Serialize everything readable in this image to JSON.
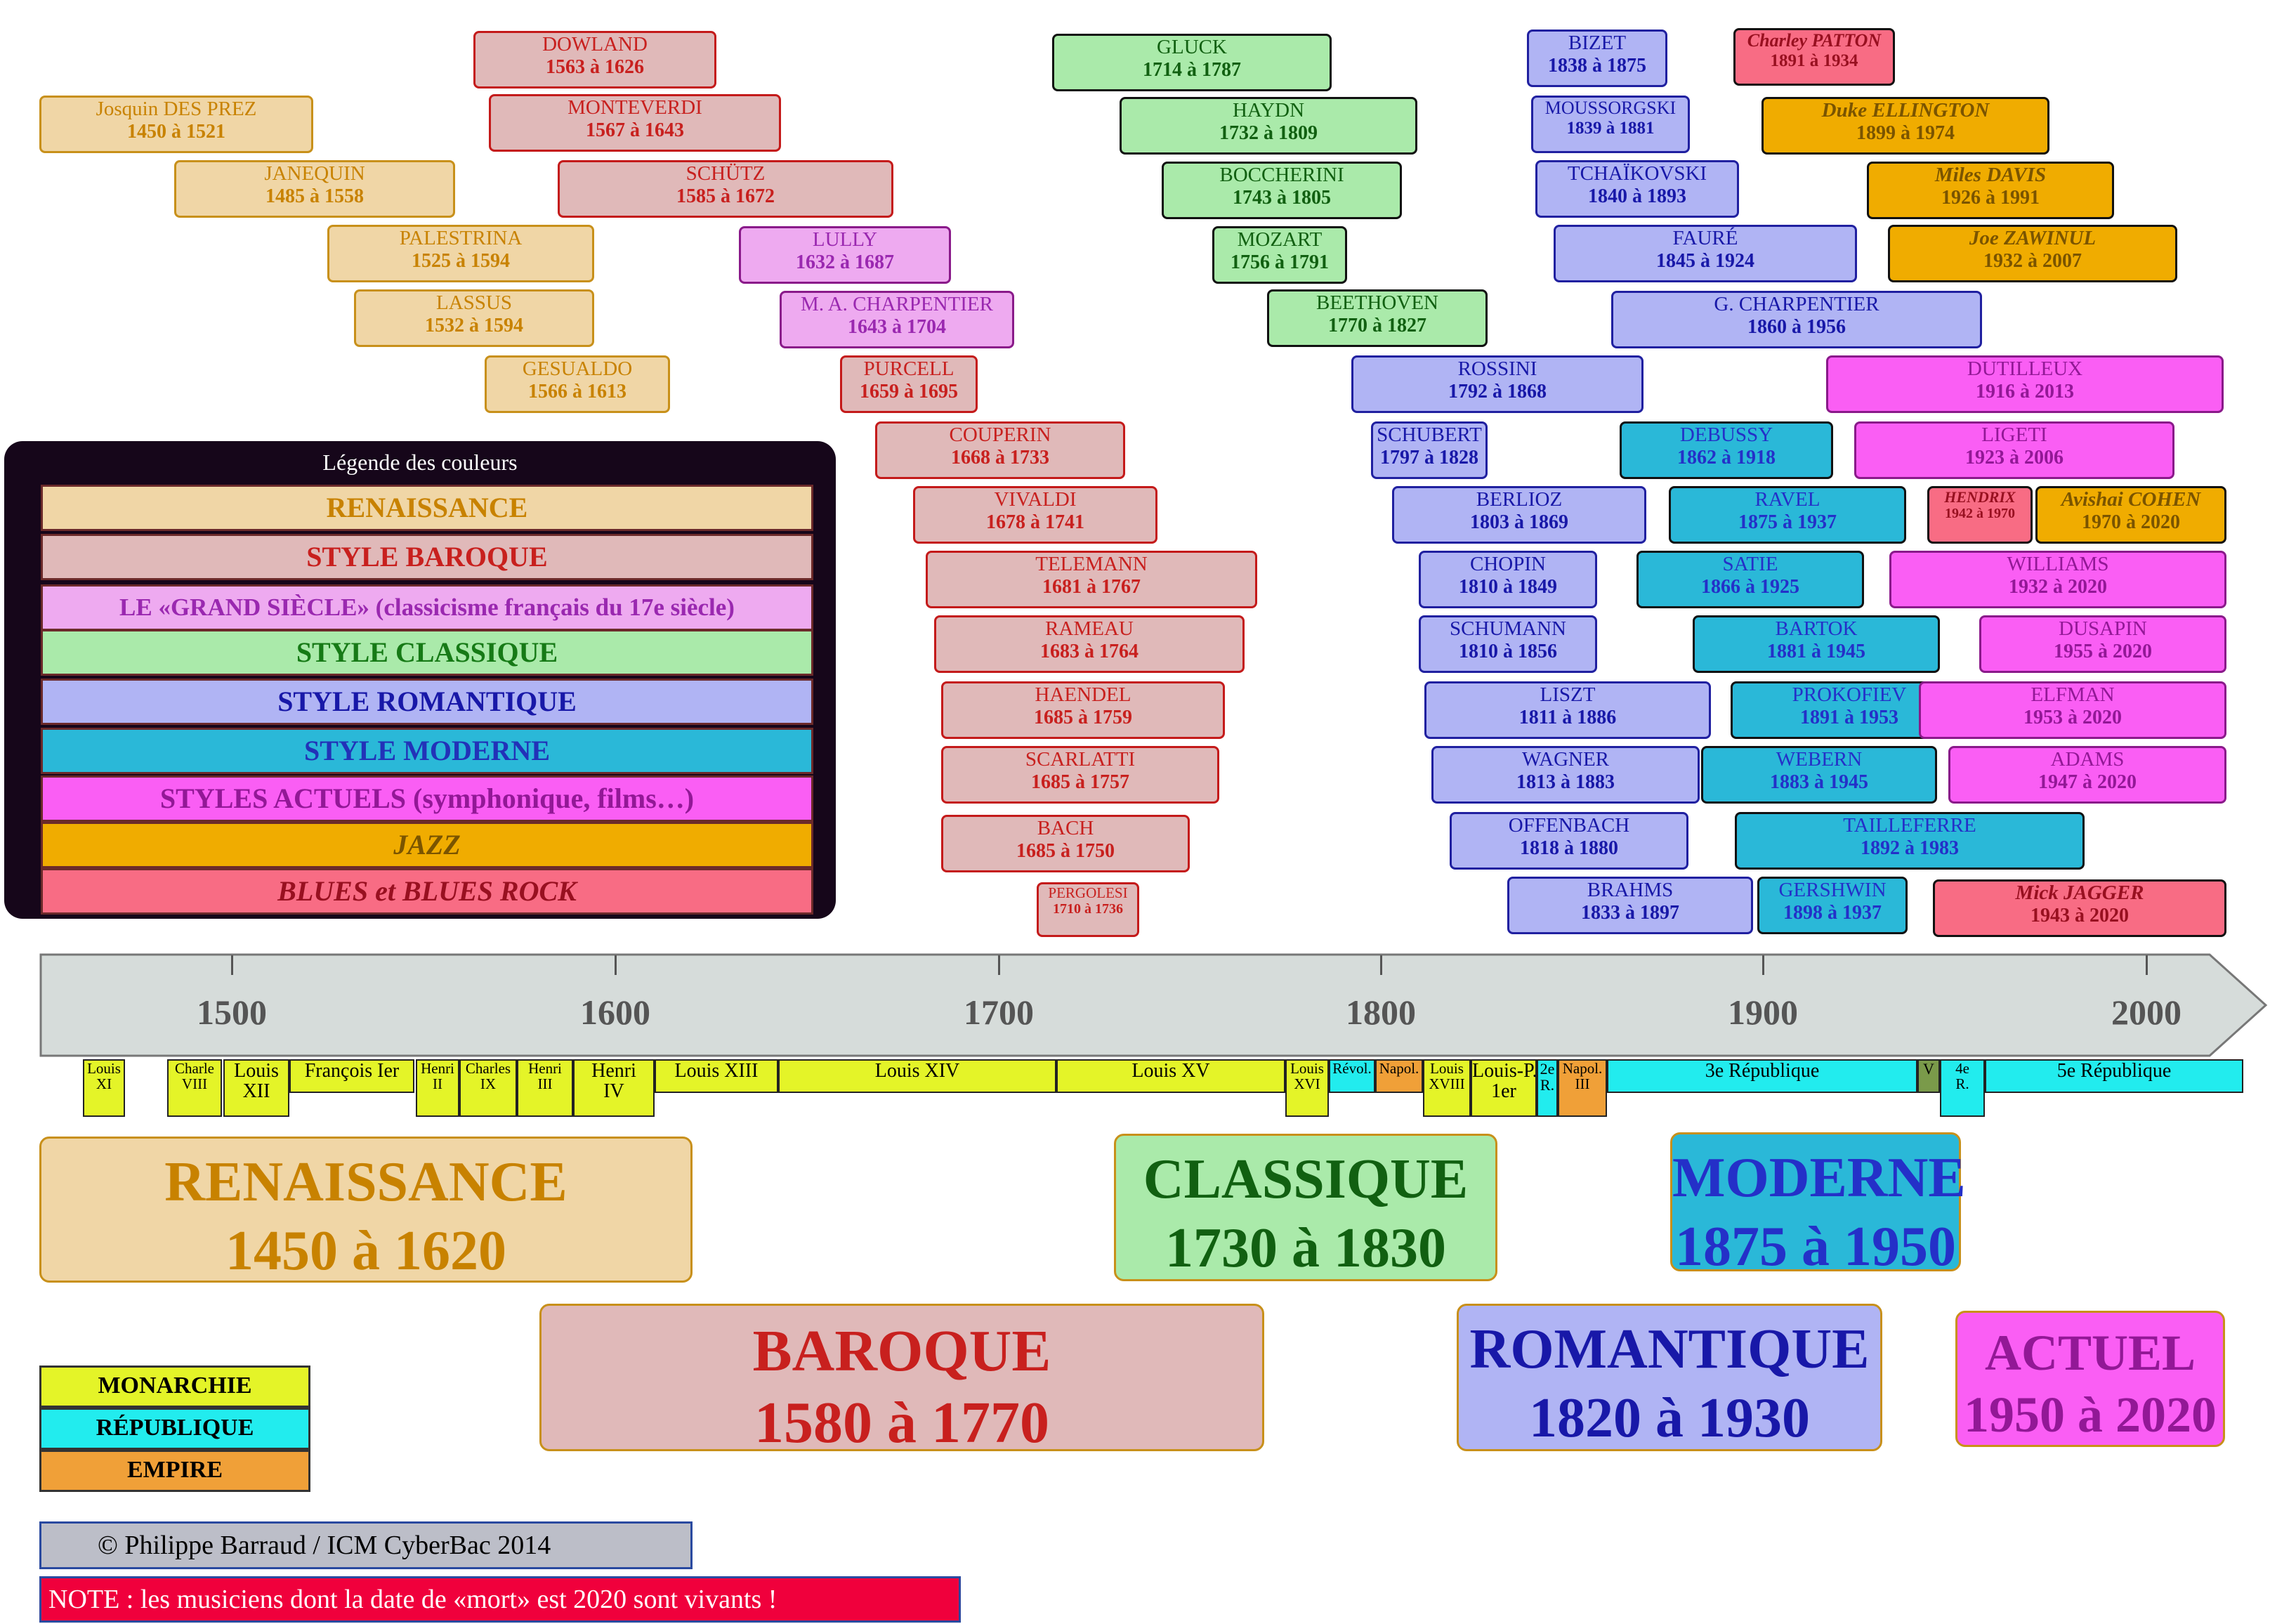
{
  "legend": {
    "title": "Légende des couleurs",
    "items": [
      {
        "label": "RENAISSANCE",
        "bg": "#f0d6a6",
        "fg": "#c88200",
        "italic": false
      },
      {
        "label": "STYLE BAROQUE",
        "bg": "#e0b9b9",
        "fg": "#c8201e",
        "italic": false
      },
      {
        "label": "LE «GRAND SIÈCLE» (classicisme français du 17e siècle)",
        "bg": "#eeaaf0",
        "fg": "#9a28b0",
        "italic": false
      },
      {
        "label": "STYLE CLASSIQUE",
        "bg": "#aaeaaa",
        "fg": "#167a16",
        "italic": false
      },
      {
        "label": "STYLE ROMANTIQUE",
        "bg": "#b0b4f4",
        "fg": "#1818a8",
        "italic": false
      },
      {
        "label": "STYLE MODERNE",
        "bg": "#2ab8d8",
        "fg": "#2232b8",
        "italic": false
      },
      {
        "label": "STYLES ACTUELS (symphonique, films…)",
        "bg": "#fa5ef4",
        "fg": "#921896",
        "italic": false
      },
      {
        "label": "JAZZ",
        "bg": "#f0ac00",
        "fg": "#7a5400",
        "italic": true
      },
      {
        "label": "BLUES et BLUES ROCK",
        "bg": "#f86c84",
        "fg": "#981020",
        "italic": true
      }
    ]
  },
  "composers": [
    {
      "name": "Josquin DES PREZ",
      "dates": "1450 à 1521",
      "style": "renaissance"
    },
    {
      "name": "JANEQUIN",
      "dates": "1485 à 1558",
      "style": "renaissance"
    },
    {
      "name": "PALESTRINA",
      "dates": "1525 à 1594",
      "style": "renaissance"
    },
    {
      "name": "LASSUS",
      "dates": "1532 à 1594",
      "style": "renaissance"
    },
    {
      "name": "GESUALDO",
      "dates": "1566 à 1613",
      "style": "renaissance"
    },
    {
      "name": "DOWLAND",
      "dates": "1563 à 1626",
      "style": "baroque"
    },
    {
      "name": "MONTEVERDI",
      "dates": "1567 à 1643",
      "style": "baroque"
    },
    {
      "name": "SCHÜTZ",
      "dates": "1585 à 1672",
      "style": "baroque"
    },
    {
      "name": "LULLY",
      "dates": "1632 à 1687",
      "style": "grandsiecle"
    },
    {
      "name": "M. A. CHARPENTIER",
      "dates": "1643 à 1704",
      "style": "grandsiecle"
    },
    {
      "name": "PURCELL",
      "dates": "1659 à 1695",
      "style": "baroque"
    },
    {
      "name": "COUPERIN",
      "dates": "1668 à 1733",
      "style": "baroque"
    },
    {
      "name": "VIVALDI",
      "dates": "1678 à 1741",
      "style": "baroque"
    },
    {
      "name": "TELEMANN",
      "dates": "1681 à 1767",
      "style": "baroque"
    },
    {
      "name": "RAMEAU",
      "dates": "1683 à 1764",
      "style": "baroque"
    },
    {
      "name": "HAENDEL",
      "dates": "1685 à 1759",
      "style": "baroque"
    },
    {
      "name": "SCARLATTI",
      "dates": "1685 à 1757",
      "style": "baroque"
    },
    {
      "name": "BACH",
      "dates": "1685 à 1750",
      "style": "baroque"
    },
    {
      "name": "PERGOLESI",
      "dates": "1710 à 1736",
      "style": "baroque"
    },
    {
      "name": "GLUCK",
      "dates": "1714 à 1787",
      "style": "classique"
    },
    {
      "name": "HAYDN",
      "dates": "1732 à 1809",
      "style": "classique"
    },
    {
      "name": "BOCCHERINI",
      "dates": "1743 à 1805",
      "style": "classique"
    },
    {
      "name": "MOZART",
      "dates": "1756 à 1791",
      "style": "classique"
    },
    {
      "name": "BEETHOVEN",
      "dates": "1770 à 1827",
      "style": "classique"
    },
    {
      "name": "ROSSINI",
      "dates": "1792 à 1868",
      "style": "romantique"
    },
    {
      "name": "SCHUBERT",
      "dates": "1797 à 1828",
      "style": "romantique"
    },
    {
      "name": "BERLIOZ",
      "dates": "1803 à 1869",
      "style": "romantique"
    },
    {
      "name": "CHOPIN",
      "dates": "1810 à 1849",
      "style": "romantique"
    },
    {
      "name": "SCHUMANN",
      "dates": "1810 à 1856",
      "style": "romantique"
    },
    {
      "name": "LISZT",
      "dates": "1811 à 1886",
      "style": "romantique"
    },
    {
      "name": "WAGNER",
      "dates": "1813 à 1883",
      "style": "romantique"
    },
    {
      "name": "OFFENBACH",
      "dates": "1818 à 1880",
      "style": "romantique"
    },
    {
      "name": "BRAHMS",
      "dates": "1833 à 1897",
      "style": "romantique"
    },
    {
      "name": "BIZET",
      "dates": "1838 à 1875",
      "style": "romantique"
    },
    {
      "name": "MOUSSORGSKI",
      "dates": "1839 à 1881",
      "style": "romantique"
    },
    {
      "name": "TCHAÏKOVSKI",
      "dates": "1840 à 1893",
      "style": "romantique"
    },
    {
      "name": "FAURÉ",
      "dates": "1845 à 1924",
      "style": "romantique"
    },
    {
      "name": "G. CHARPENTIER",
      "dates": "1860 à 1956",
      "style": "romantique"
    },
    {
      "name": "DEBUSSY",
      "dates": "1862 à 1918",
      "style": "moderne"
    },
    {
      "name": "RAVEL",
      "dates": "1875 à 1937",
      "style": "moderne"
    },
    {
      "name": "SATIE",
      "dates": "1866 à 1925",
      "style": "moderne"
    },
    {
      "name": "BARTOK",
      "dates": "1881 à 1945",
      "style": "moderne"
    },
    {
      "name": "PROKOFIEV",
      "dates": "1891 à 1953",
      "style": "moderne"
    },
    {
      "name": "WEBERN",
      "dates": "1883 à 1945",
      "style": "moderne"
    },
    {
      "name": "TAILLEFERRE",
      "dates": "1892 à 1983",
      "style": "moderne"
    },
    {
      "name": "GERSHWIN",
      "dates": "1898 à 1937",
      "style": "moderne"
    },
    {
      "name": "Charley PATTON",
      "dates": "1891 à 1934",
      "style": "blues"
    },
    {
      "name": "Duke ELLINGTON",
      "dates": "1899 à 1974",
      "style": "jazz"
    },
    {
      "name": "Miles DAVIS",
      "dates": "1926 à 1991",
      "style": "jazz"
    },
    {
      "name": "Joe ZAWINUL",
      "dates": "1932 à 2007",
      "style": "jazz"
    },
    {
      "name": "DUTILLEUX",
      "dates": "1916 à 2013",
      "style": "actuel"
    },
    {
      "name": "LIGETI",
      "dates": "1923 à 2006",
      "style": "actuel"
    },
    {
      "name": "HENDRIX",
      "dates": "1942 à 1970",
      "style": "blues"
    },
    {
      "name": "Avishai COHEN",
      "dates": "1970 à 2020",
      "style": "jazz"
    },
    {
      "name": "WILLIAMS",
      "dates": "1932 à 2020",
      "style": "actuel"
    },
    {
      "name": "DUSAPIN",
      "dates": "1955 à 2020",
      "style": "actuel"
    },
    {
      "name": "ELFMAN",
      "dates": "1953 à 2020",
      "style": "actuel"
    },
    {
      "name": "ADAMS",
      "dates": "1947 à 2020",
      "style": "actuel"
    },
    {
      "name": "Mick JAGGER",
      "dates": "1943 à 2020",
      "style": "blues"
    }
  ],
  "styles": {
    "renaissance": {
      "bg": "#f0d6a6",
      "border": "#c8901a",
      "fg": "#c88200"
    },
    "baroque": {
      "bg": "#e0b9b9",
      "border": "#c41a1a",
      "fg": "#c8201e"
    },
    "grandsiecle": {
      "bg": "#eeaaf0",
      "border": "#8a1a8a",
      "fg": "#9a28b0"
    },
    "classique": {
      "bg": "#aaeaaa",
      "border": "#111111",
      "fg": "#116011"
    },
    "romantique": {
      "bg": "#b0b4f4",
      "border": "#2020a0",
      "fg": "#1818a8"
    },
    "moderne": {
      "bg": "#2ab8d8",
      "border": "#111111",
      "fg": "#2430c8"
    },
    "actuel": {
      "bg": "#fa5ef4",
      "border": "#8a1a8a",
      "fg": "#921896"
    },
    "jazz": {
      "bg": "#f0ac00",
      "border": "#111111",
      "fg": "#7a5400"
    },
    "blues": {
      "bg": "#f86c84",
      "border": "#111111",
      "fg": "#981020"
    }
  },
  "timeline": {
    "years": [
      "1500",
      "1600",
      "1700",
      "1800",
      "1900",
      "2000"
    ]
  },
  "regimes": [
    {
      "l1": "Louis",
      "l2": "XI",
      "type": "monarchie"
    },
    {
      "l1": "Charle",
      "l2": "VIII",
      "type": "monarchie"
    },
    {
      "l1": "Louis",
      "l2": "XII",
      "type": "monarchie"
    },
    {
      "l1": "François Ier",
      "l2": "",
      "type": "monarchie"
    },
    {
      "l1": "Henri",
      "l2": "II",
      "type": "monarchie"
    },
    {
      "l1": "Charles",
      "l2": "IX",
      "type": "monarchie"
    },
    {
      "l1": "Henri",
      "l2": "III",
      "type": "monarchie"
    },
    {
      "l1": "Henri",
      "l2": "IV",
      "type": "monarchie"
    },
    {
      "l1": "Louis XIII",
      "l2": "",
      "type": "monarchie"
    },
    {
      "l1": "Louis XIV",
      "l2": "",
      "type": "monarchie"
    },
    {
      "l1": "Louis XV",
      "l2": "",
      "type": "monarchie"
    },
    {
      "l1": "Louis",
      "l2": "XVI",
      "type": "monarchie"
    },
    {
      "l1": "Révol.",
      "l2": "",
      "type": "republique"
    },
    {
      "l1": "Napol.",
      "l2": "",
      "type": "empire"
    },
    {
      "l1": "Louis",
      "l2": "XVIII",
      "type": "monarchie"
    },
    {
      "l1": "Louis-P.",
      "l2": "1er",
      "type": "monarchie"
    },
    {
      "l1": "2e",
      "l2": "R.",
      "type": "republique"
    },
    {
      "l1": "Napol.",
      "l2": "III",
      "type": "empire"
    },
    {
      "l1": "3e République",
      "l2": "",
      "type": "republique"
    },
    {
      "l1": "V",
      "l2": "",
      "type": "vichy"
    },
    {
      "l1": "4e",
      "l2": "R.",
      "type": "republique"
    },
    {
      "l1": "5e République",
      "l2": "",
      "type": "republique"
    }
  ],
  "regime_colors": {
    "monarchie": "#e4f428",
    "republique": "#22ecee",
    "empire": "#f0a038",
    "vichy": "#7a9a4a"
  },
  "periods": [
    {
      "name": "RENAISSANCE",
      "range": "1450 à 1620",
      "bg": "#f0d6a6",
      "border": "#c8901a",
      "fg": "#c88200"
    },
    {
      "name": "BAROQUE",
      "range": "1580 à 1770",
      "bg": "#e0b9b9",
      "border": "#c8901a",
      "fg": "#c8201e"
    },
    {
      "name": "CLASSIQUE",
      "range": "1730 à 1830",
      "bg": "#aaeaaa",
      "border": "#c8901a",
      "fg": "#116011"
    },
    {
      "name": "ROMANTIQUE",
      "range": "1820 à 1930",
      "bg": "#b0b4f4",
      "border": "#c8901a",
      "fg": "#1818a8"
    },
    {
      "name": "MODERNE",
      "range": "1875 à 1950",
      "bg": "#2ab8d8",
      "border": "#c8901a",
      "fg": "#2430c8"
    },
    {
      "name": "ACTUEL",
      "range": "1950 à 2020",
      "bg": "#fa5ef4",
      "border": "#c8901a",
      "fg": "#921896"
    }
  ],
  "regime_legend": [
    {
      "label": "MONARCHIE",
      "bg": "#e4f428"
    },
    {
      "label": "RÉPUBLIQUE",
      "bg": "#22ecee"
    },
    {
      "label": "EMPIRE",
      "bg": "#f0a038"
    }
  ],
  "footer": {
    "copyright": "© Philippe Barraud / ICM CyberBac 2014",
    "note": "NOTE : les musiciens dont la date de «mort» est 2020 sont vivants !"
  }
}
